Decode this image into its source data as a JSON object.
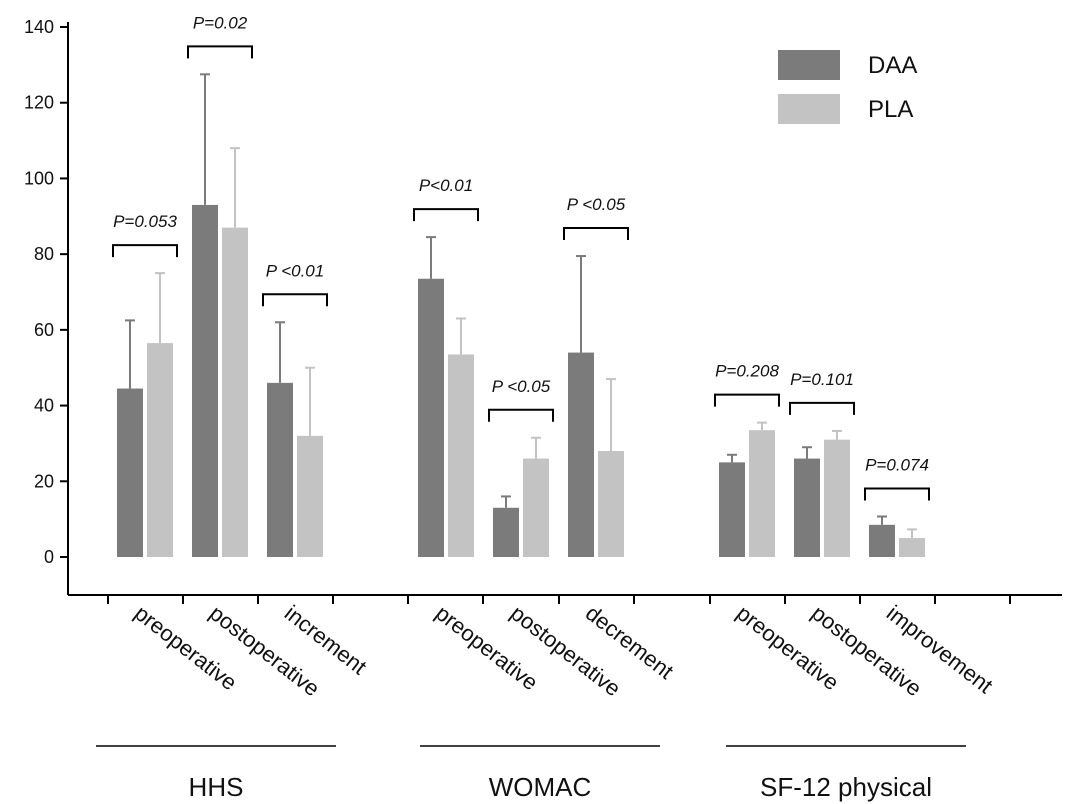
{
  "chart_data": {
    "type": "bar",
    "title": "",
    "xlabel": "",
    "ylabel": "",
    "ylim": [
      -10,
      140
    ],
    "yticks": [
      0,
      20,
      40,
      60,
      80,
      100,
      120,
      140
    ],
    "legend_position": "top-right",
    "series": [
      {
        "name": "DAA",
        "color": "#7b7b7b"
      },
      {
        "name": "PLA",
        "color": "#c3c3c3"
      }
    ],
    "groups": [
      {
        "label": "HHS",
        "categories": [
          {
            "label": "preoperative",
            "DAA": 44.5,
            "DAA_err": 18,
            "PLA": 56.5,
            "PLA_err": 18.5,
            "p": "P=0.053"
          },
          {
            "label": "postoperative",
            "DAA": 93,
            "DAA_err": 34.5,
            "PLA": 87,
            "PLA_err": 21,
            "p": "P=0.02"
          },
          {
            "label": "increment",
            "DAA": 46,
            "DAA_err": 16,
            "PLA": 32,
            "PLA_err": 18,
            "p": "P <0.01"
          }
        ]
      },
      {
        "label": "WOMAC",
        "categories": [
          {
            "label": "preoperative",
            "DAA": 73.5,
            "DAA_err": 11,
            "PLA": 53.5,
            "PLA_err": 9.5,
            "p": "P<0.01"
          },
          {
            "label": "postoperative",
            "DAA": 13,
            "DAA_err": 3,
            "PLA": 26,
            "PLA_err": 5.5,
            "p": "P <0.05"
          },
          {
            "label": "decrement",
            "DAA": 54,
            "DAA_err": 25.5,
            "PLA": 28,
            "PLA_err": 19,
            "p": "P <0.05"
          }
        ]
      },
      {
        "label": "SF-12 physical",
        "categories": [
          {
            "label": "preoperative",
            "DAA": 25,
            "DAA_err": 2,
            "PLA": 33.5,
            "PLA_err": 2,
            "p": "P=0.208"
          },
          {
            "label": "postoperative",
            "DAA": 26,
            "DAA_err": 3,
            "PLA": 31,
            "PLA_err": 2.3,
            "p": "P=0.101"
          },
          {
            "label": "improvement",
            "DAA": 8.5,
            "DAA_err": 2.2,
            "PLA": 5,
            "PLA_err": 2.3,
            "p": "P=0.074"
          }
        ]
      }
    ]
  }
}
